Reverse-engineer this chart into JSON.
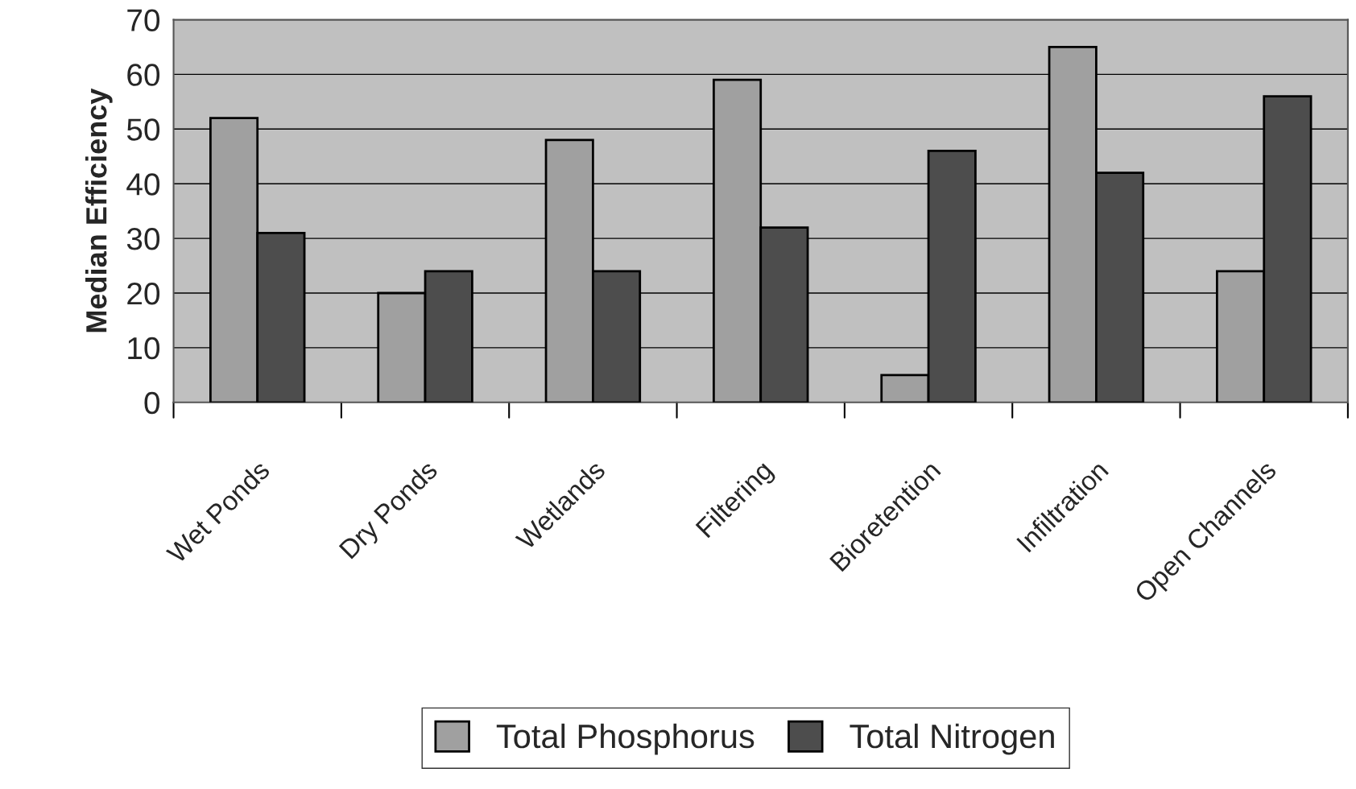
{
  "chart_data": {
    "type": "bar",
    "ylabel": "Median Efficiency",
    "categories": [
      "Wet Ponds",
      "Dry Ponds",
      "Wetlands",
      "Filtering",
      "Bioretention",
      "Infiltration",
      "Open Channels"
    ],
    "series": [
      {
        "name": "Total Phosphorus",
        "color": "#a0a0a0",
        "values": [
          52,
          20,
          48,
          59,
          5,
          65,
          24
        ]
      },
      {
        "name": "Total Nitrogen",
        "color": "#4d4d4d",
        "values": [
          31,
          24,
          24,
          32,
          46,
          42,
          56
        ]
      }
    ],
    "ylim": [
      0,
      70
    ],
    "yticks": [
      0,
      10,
      20,
      30,
      40,
      50,
      60,
      70
    ],
    "grid": "y",
    "legend": "bottom"
  }
}
